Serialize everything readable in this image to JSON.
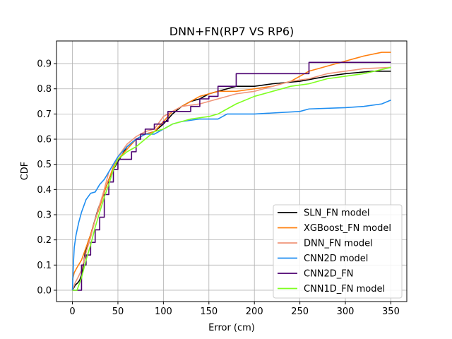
{
  "chart_data": {
    "type": "line",
    "title": "DNN+FN(RP7 VS RP6)",
    "xlabel": "Error (cm)",
    "ylabel": "CDF",
    "xlim": [
      -17.5,
      367.5
    ],
    "ylim": [
      -0.045,
      0.99
    ],
    "xticks": [
      0,
      50,
      100,
      150,
      200,
      250,
      300,
      350
    ],
    "yticks": [
      0.0,
      0.1,
      0.2,
      0.3,
      0.4,
      0.5,
      0.6,
      0.7,
      0.8,
      0.9
    ],
    "grid": true,
    "legend_position": "lower-right",
    "series": [
      {
        "name": "SLN_FN model",
        "color": "#000000",
        "points": [
          [
            0,
            0
          ],
          [
            3,
            0.02
          ],
          [
            6,
            0.03
          ],
          [
            8,
            0.04
          ],
          [
            10,
            0.06
          ],
          [
            12,
            0.1
          ],
          [
            14,
            0.15
          ],
          [
            17,
            0.19
          ],
          [
            20,
            0.22
          ],
          [
            24,
            0.27
          ],
          [
            28,
            0.32
          ],
          [
            32,
            0.36
          ],
          [
            36,
            0.4
          ],
          [
            40,
            0.44
          ],
          [
            45,
            0.48
          ],
          [
            50,
            0.51
          ],
          [
            55,
            0.54
          ],
          [
            60,
            0.57
          ],
          [
            70,
            0.6
          ],
          [
            80,
            0.62
          ],
          [
            90,
            0.63
          ],
          [
            100,
            0.66
          ],
          [
            110,
            0.7
          ],
          [
            120,
            0.73
          ],
          [
            130,
            0.75
          ],
          [
            140,
            0.76
          ],
          [
            150,
            0.78
          ],
          [
            160,
            0.79
          ],
          [
            180,
            0.81
          ],
          [
            200,
            0.81
          ],
          [
            220,
            0.82
          ],
          [
            250,
            0.83
          ],
          [
            280,
            0.85
          ],
          [
            300,
            0.86
          ],
          [
            330,
            0.87
          ],
          [
            350,
            0.87
          ]
        ]
      },
      {
        "name": "XGBoost_FN model",
        "color": "#ff7f0e",
        "points": [
          [
            0,
            0.04
          ],
          [
            2,
            0.07
          ],
          [
            5,
            0.09
          ],
          [
            10,
            0.12
          ],
          [
            15,
            0.17
          ],
          [
            20,
            0.22
          ],
          [
            25,
            0.28
          ],
          [
            30,
            0.33
          ],
          [
            35,
            0.39
          ],
          [
            40,
            0.44
          ],
          [
            45,
            0.49
          ],
          [
            50,
            0.52
          ],
          [
            60,
            0.56
          ],
          [
            70,
            0.6
          ],
          [
            80,
            0.62
          ],
          [
            90,
            0.63
          ],
          [
            100,
            0.67
          ],
          [
            110,
            0.71
          ],
          [
            120,
            0.73
          ],
          [
            130,
            0.75
          ],
          [
            140,
            0.77
          ],
          [
            150,
            0.78
          ],
          [
            160,
            0.79
          ],
          [
            180,
            0.79
          ],
          [
            200,
            0.8
          ],
          [
            220,
            0.81
          ],
          [
            240,
            0.83
          ],
          [
            250,
            0.85
          ],
          [
            260,
            0.87
          ],
          [
            270,
            0.88
          ],
          [
            280,
            0.89
          ],
          [
            300,
            0.91
          ],
          [
            320,
            0.93
          ],
          [
            340,
            0.945
          ],
          [
            350,
            0.945
          ]
        ]
      },
      {
        "name": "DNN_FN model",
        "color": "#f0957a",
        "points": [
          [
            0,
            0
          ],
          [
            3,
            0.03
          ],
          [
            6,
            0.05
          ],
          [
            10,
            0.08
          ],
          [
            15,
            0.15
          ],
          [
            20,
            0.21
          ],
          [
            25,
            0.28
          ],
          [
            30,
            0.34
          ],
          [
            35,
            0.4
          ],
          [
            40,
            0.47
          ],
          [
            45,
            0.5
          ],
          [
            50,
            0.53
          ],
          [
            60,
            0.58
          ],
          [
            70,
            0.61
          ],
          [
            80,
            0.63
          ],
          [
            90,
            0.64
          ],
          [
            100,
            0.69
          ],
          [
            110,
            0.71
          ],
          [
            120,
            0.73
          ],
          [
            140,
            0.74
          ],
          [
            160,
            0.76
          ],
          [
            180,
            0.78
          ],
          [
            200,
            0.79
          ],
          [
            220,
            0.81
          ],
          [
            240,
            0.83
          ],
          [
            260,
            0.84
          ],
          [
            280,
            0.86
          ],
          [
            300,
            0.87
          ],
          [
            320,
            0.88
          ],
          [
            350,
            0.885
          ]
        ]
      },
      {
        "name": "CNN2D model",
        "color": "#1f8ef1",
        "points": [
          [
            0,
            0
          ],
          [
            1,
            0.1
          ],
          [
            2,
            0.17
          ],
          [
            4,
            0.22
          ],
          [
            7,
            0.27
          ],
          [
            10,
            0.31
          ],
          [
            15,
            0.36
          ],
          [
            20,
            0.385
          ],
          [
            25,
            0.39
          ],
          [
            30,
            0.42
          ],
          [
            35,
            0.44
          ],
          [
            40,
            0.47
          ],
          [
            45,
            0.5
          ],
          [
            50,
            0.53
          ],
          [
            60,
            0.57
          ],
          [
            70,
            0.6
          ],
          [
            80,
            0.62
          ],
          [
            90,
            0.62
          ],
          [
            100,
            0.64
          ],
          [
            110,
            0.66
          ],
          [
            120,
            0.67
          ],
          [
            140,
            0.68
          ],
          [
            160,
            0.68
          ],
          [
            170,
            0.7
          ],
          [
            200,
            0.7
          ],
          [
            250,
            0.71
          ],
          [
            260,
            0.72
          ],
          [
            300,
            0.725
          ],
          [
            320,
            0.73
          ],
          [
            340,
            0.74
          ],
          [
            350,
            0.755
          ]
        ]
      },
      {
        "name": "CNN2D_FN",
        "color": "#4b0070",
        "points": [
          [
            0,
            0
          ],
          [
            10,
            0
          ],
          [
            10,
            0.1
          ],
          [
            15,
            0.1
          ],
          [
            15,
            0.14
          ],
          [
            20,
            0.14
          ],
          [
            20,
            0.19
          ],
          [
            25,
            0.19
          ],
          [
            25,
            0.24
          ],
          [
            30,
            0.24
          ],
          [
            30,
            0.29
          ],
          [
            35,
            0.29
          ],
          [
            35,
            0.38
          ],
          [
            40,
            0.38
          ],
          [
            40,
            0.43
          ],
          [
            45,
            0.43
          ],
          [
            45,
            0.48
          ],
          [
            50,
            0.48
          ],
          [
            50,
            0.52
          ],
          [
            60,
            0.52
          ],
          [
            60,
            0.52
          ],
          [
            65,
            0.52
          ],
          [
            65,
            0.55
          ],
          [
            70,
            0.55
          ],
          [
            70,
            0.6
          ],
          [
            75,
            0.6
          ],
          [
            75,
            0.62
          ],
          [
            80,
            0.62
          ],
          [
            80,
            0.64
          ],
          [
            90,
            0.64
          ],
          [
            90,
            0.66
          ],
          [
            100,
            0.66
          ],
          [
            100,
            0.67
          ],
          [
            105,
            0.67
          ],
          [
            105,
            0.71
          ],
          [
            130,
            0.71
          ],
          [
            130,
            0.73
          ],
          [
            140,
            0.73
          ],
          [
            140,
            0.76
          ],
          [
            150,
            0.76
          ],
          [
            150,
            0.77
          ],
          [
            160,
            0.77
          ],
          [
            160,
            0.81
          ],
          [
            180,
            0.81
          ],
          [
            180,
            0.86
          ],
          [
            260,
            0.86
          ],
          [
            260,
            0.905
          ],
          [
            350,
            0.905
          ]
        ]
      },
      {
        "name": "CNN1D_FN model",
        "color": "#7fff20",
        "points": [
          [
            0,
            0
          ],
          [
            5,
            0
          ],
          [
            10,
            0.05
          ],
          [
            15,
            0.12
          ],
          [
            20,
            0.18
          ],
          [
            25,
            0.25
          ],
          [
            30,
            0.31
          ],
          [
            35,
            0.37
          ],
          [
            40,
            0.42
          ],
          [
            45,
            0.48
          ],
          [
            50,
            0.52
          ],
          [
            60,
            0.55
          ],
          [
            70,
            0.57
          ],
          [
            80,
            0.6
          ],
          [
            90,
            0.63
          ],
          [
            100,
            0.64
          ],
          [
            110,
            0.66
          ],
          [
            120,
            0.67
          ],
          [
            130,
            0.68
          ],
          [
            150,
            0.69
          ],
          [
            160,
            0.7
          ],
          [
            170,
            0.72
          ],
          [
            180,
            0.74
          ],
          [
            200,
            0.77
          ],
          [
            220,
            0.79
          ],
          [
            240,
            0.81
          ],
          [
            260,
            0.82
          ],
          [
            280,
            0.84
          ],
          [
            300,
            0.85
          ],
          [
            320,
            0.86
          ],
          [
            350,
            0.885
          ]
        ]
      }
    ]
  }
}
